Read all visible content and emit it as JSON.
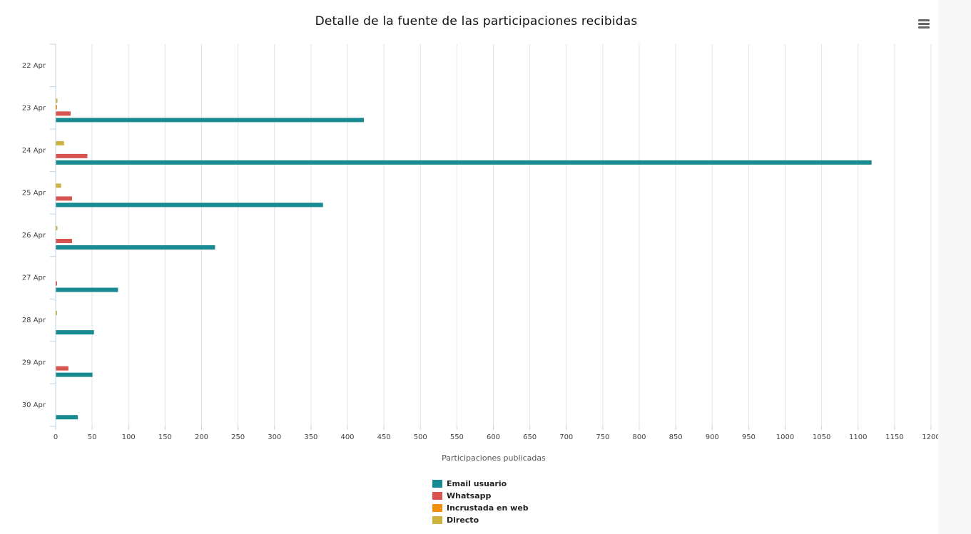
{
  "header": {
    "title": "Detalle de la fuente de las participaciones recibidas",
    "menu_icon": "hamburger-menu-icon"
  },
  "chart_data": {
    "type": "bar",
    "orientation": "horizontal",
    "title": "Detalle de la fuente de las participaciones recibidas",
    "xlabel": "Participaciones publicadas",
    "ylabel": "",
    "categories": [
      "22 Apr",
      "23 Apr",
      "24 Apr",
      "25 Apr",
      "26 Apr",
      "27 Apr",
      "28 Apr",
      "29 Apr",
      "30 Apr"
    ],
    "xlim": [
      0,
      1200
    ],
    "xticks": [
      0,
      50,
      100,
      150,
      200,
      250,
      300,
      350,
      400,
      450,
      500,
      550,
      600,
      650,
      700,
      750,
      800,
      850,
      900,
      950,
      1000,
      1050,
      1100,
      1150,
      1200
    ],
    "grid": true,
    "legend_position": "bottom-center",
    "series": [
      {
        "name": "Email usuario",
        "color": "#178a92",
        "values": [
          0,
          422,
          1118,
          366,
          218,
          85,
          52,
          50,
          30
        ]
      },
      {
        "name": "Whatsapp",
        "color": "#d75450",
        "values": [
          0,
          20,
          43,
          22,
          22,
          1,
          0,
          17,
          0
        ]
      },
      {
        "name": "Incrustada en web",
        "color": "#f28f0f",
        "values": [
          0,
          1,
          0,
          0,
          0,
          0,
          0,
          0,
          0
        ]
      },
      {
        "name": "Directo",
        "color": "#cdb240",
        "values": [
          0,
          2,
          11,
          7,
          2,
          0,
          1,
          0,
          0
        ]
      }
    ]
  }
}
